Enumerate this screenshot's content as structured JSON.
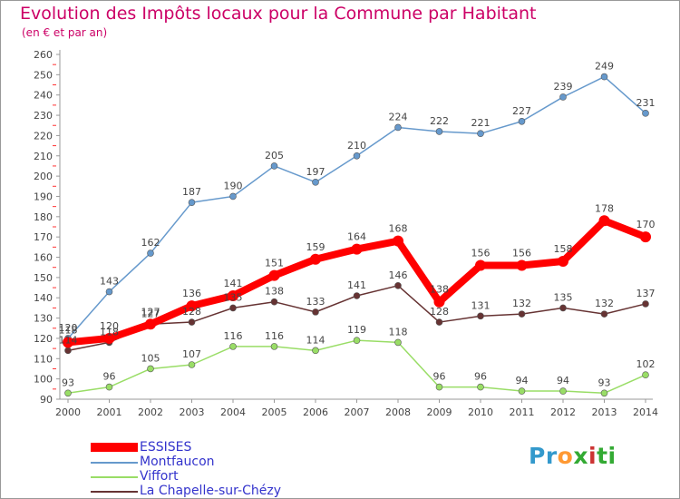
{
  "chart_data": {
    "type": "line",
    "title": "Evolution des Impôts locaux pour la Commune par Habitant",
    "subtitle": "(en € et par an)",
    "xlabel": "",
    "ylabel": "",
    "x": [
      2000,
      2001,
      2002,
      2003,
      2004,
      2005,
      2006,
      2007,
      2008,
      2009,
      2010,
      2011,
      2012,
      2013,
      2014
    ],
    "yticks": [
      90,
      100,
      110,
      120,
      130,
      140,
      150,
      160,
      170,
      180,
      190,
      200,
      210,
      220,
      230,
      240,
      250,
      260
    ],
    "ylim": [
      90,
      260
    ],
    "grid": false,
    "legend_position": "bottom-left",
    "series": [
      {
        "name": "ESSISES",
        "color": "#ff0000",
        "width": "thick",
        "values": [
          118,
          120,
          127,
          136,
          141,
          151,
          159,
          164,
          168,
          138,
          156,
          156,
          158,
          178,
          170
        ]
      },
      {
        "name": "Montfaucon",
        "color": "#6699cc",
        "width": "thin",
        "values": [
          120,
          143,
          162,
          187,
          190,
          205,
          197,
          210,
          224,
          222,
          221,
          227,
          239,
          249,
          231
        ]
      },
      {
        "name": "Viffort",
        "color": "#99dd66",
        "width": "thin",
        "values": [
          93,
          96,
          105,
          107,
          116,
          116,
          114,
          119,
          118,
          96,
          96,
          94,
          94,
          93,
          102
        ]
      },
      {
        "name": "La Chapelle-sur-Chézy",
        "color": "#663333",
        "width": "thin",
        "values": [
          114,
          118,
          127,
          128,
          135,
          138,
          133,
          141,
          146,
          128,
          131,
          132,
          135,
          132,
          137
        ]
      }
    ]
  },
  "logo": {
    "letters": [
      "Pr",
      "o",
      "x",
      "i",
      "ti"
    ]
  }
}
